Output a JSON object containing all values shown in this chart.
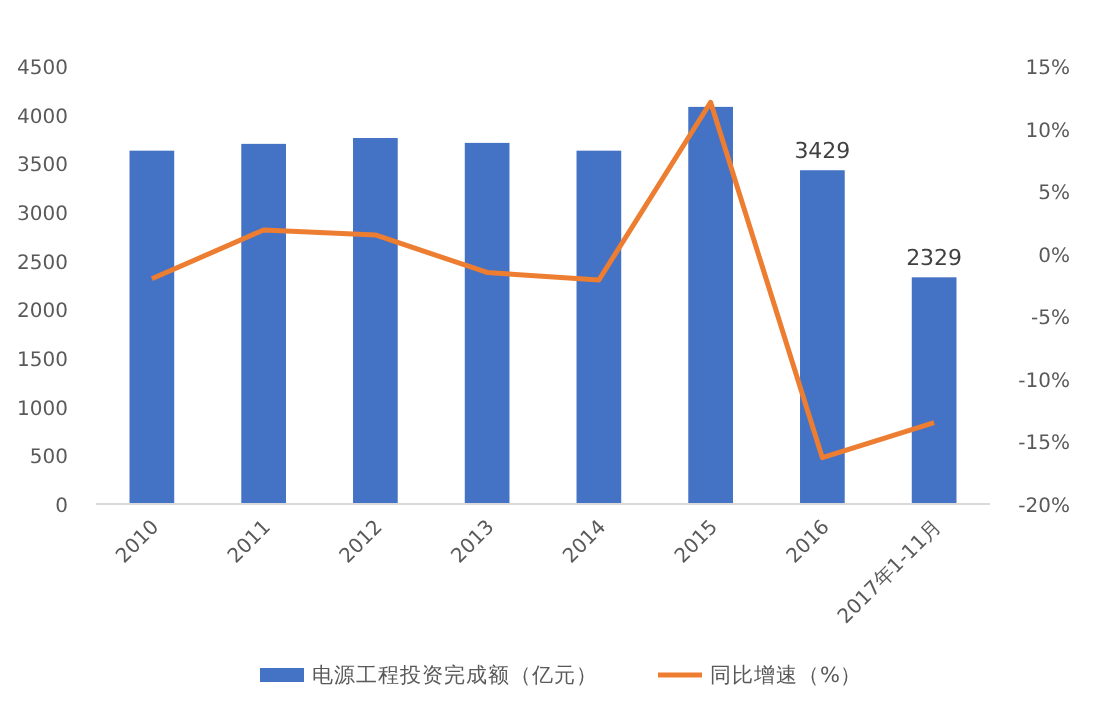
{
  "chart_data": {
    "type": "bar",
    "categories": [
      "2010",
      "2011",
      "2012",
      "2013",
      "2014",
      "2015",
      "2016",
      "2017年1-11月"
    ],
    "series": [
      {
        "name": "电源工程投资完成额（亿元）",
        "color": "#4472c4",
        "values": [
          3630,
          3700,
          3760,
          3710,
          3630,
          4080,
          3429,
          2329
        ],
        "value_labels": [
          null,
          null,
          null,
          null,
          null,
          null,
          "3429",
          "2329"
        ]
      },
      {
        "name": "同比增速（%）",
        "type": "line",
        "axis": "y2",
        "color": "#ed7d31",
        "values": [
          -2.0,
          1.9,
          1.5,
          -1.5,
          -2.1,
          12.1,
          -16.3,
          -13.5
        ]
      }
    ],
    "ylim": [
      0,
      4500
    ],
    "yticks": [
      0,
      500,
      1000,
      1500,
      2000,
      2500,
      3000,
      3500,
      4000,
      4500
    ],
    "y2lim": [
      -20,
      15
    ],
    "y2ticks": [
      {
        "value": -20,
        "label": "-20%"
      },
      {
        "value": -15,
        "label": "-15%"
      },
      {
        "value": -10,
        "label": "-10%"
      },
      {
        "value": -5,
        "label": "-5%"
      },
      {
        "value": 0,
        "label": "0%"
      },
      {
        "value": 5,
        "label": "5%"
      },
      {
        "value": 10,
        "label": "10%"
      },
      {
        "value": 15,
        "label": "15%"
      }
    ],
    "grid": false,
    "legend": "bottom",
    "marker": "none",
    "line_style": "solid"
  }
}
